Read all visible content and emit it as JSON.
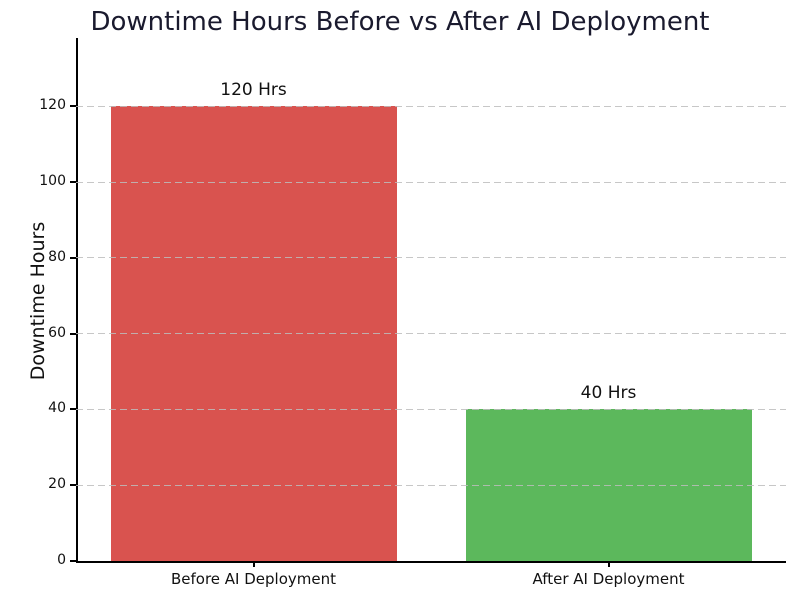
{
  "chart_data": {
    "type": "bar",
    "title": "Downtime Hours Before vs After AI Deployment",
    "categories": [
      "Before AI Deployment",
      "After AI Deployment"
    ],
    "values": [
      120,
      40
    ],
    "bar_labels": [
      "120 Hrs",
      "40 Hrs"
    ],
    "bar_colors": [
      "#d9534f",
      "#5cb85c"
    ],
    "xlabel": "",
    "ylabel": "Downtime Hours",
    "ylim": [
      0,
      138
    ],
    "yticks": [
      0,
      20,
      40,
      60,
      80,
      100,
      120
    ],
    "grid": "horizontal-dashed-on-top",
    "legend": "none"
  },
  "colors": {
    "title_text": "#1a1a2e",
    "axis_text": "#111111",
    "grid": "#bdbdbd",
    "spine": "#000000",
    "background": "#ffffff",
    "bar_before": "#d9534f",
    "bar_after": "#5cb85c"
  }
}
